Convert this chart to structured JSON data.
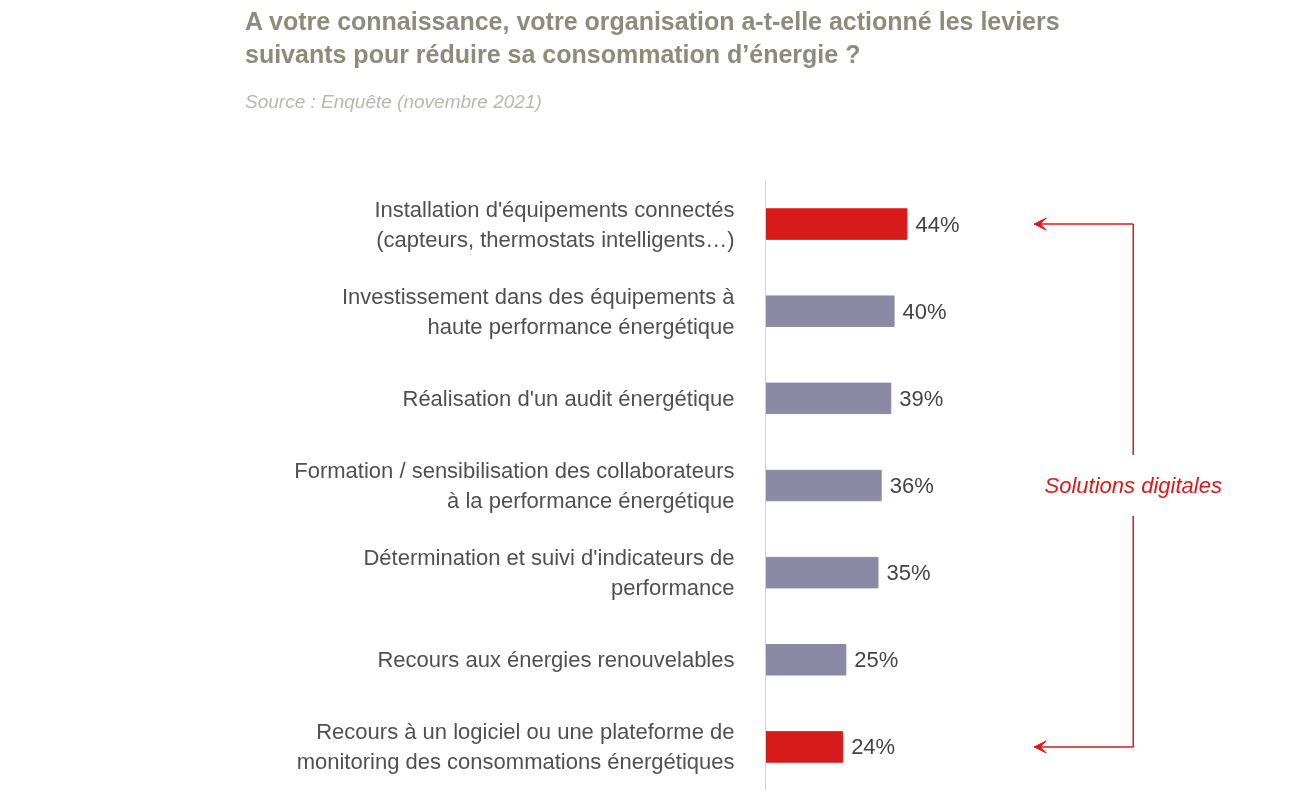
{
  "chart_data": {
    "type": "bar",
    "orientation": "horizontal",
    "title": "A votre connaissance, votre organisation a-t-elle actionné les leviers suivants pour réduire sa consommation d’énergie ?",
    "subtitle": "Source : Enquête (novembre 2021)",
    "categories": [
      "Installation d'équipements connectés\n(capteurs, thermostats intelligents…)",
      "Investissement dans des équipements à\nhaute performance énergétique",
      "Réalisation d'un audit énergétique",
      "Formation / sensibilisation des collaborateurs\nà la performance énergétique",
      "Détermination et suivi d'indicateurs de\nperformance",
      "Recours aux énergies renouvelables",
      "Recours à un logiciel ou une plateforme de\nmonitoring des consommations énergétiques"
    ],
    "values": [
      44,
      40,
      39,
      36,
      35,
      25,
      24
    ],
    "colors": [
      "#d71a1a",
      "#8a8aa4",
      "#8a8aa4",
      "#8a8aa4",
      "#8a8aa4",
      "#8a8aa4",
      "#d71a1a"
    ],
    "value_labels": [
      "44%",
      "40%",
      "39%",
      "36%",
      "35%",
      "25%",
      "24%"
    ],
    "annotations": [
      "Solutions digitales"
    ],
    "tick_labels": "y",
    "grid": false
  }
}
